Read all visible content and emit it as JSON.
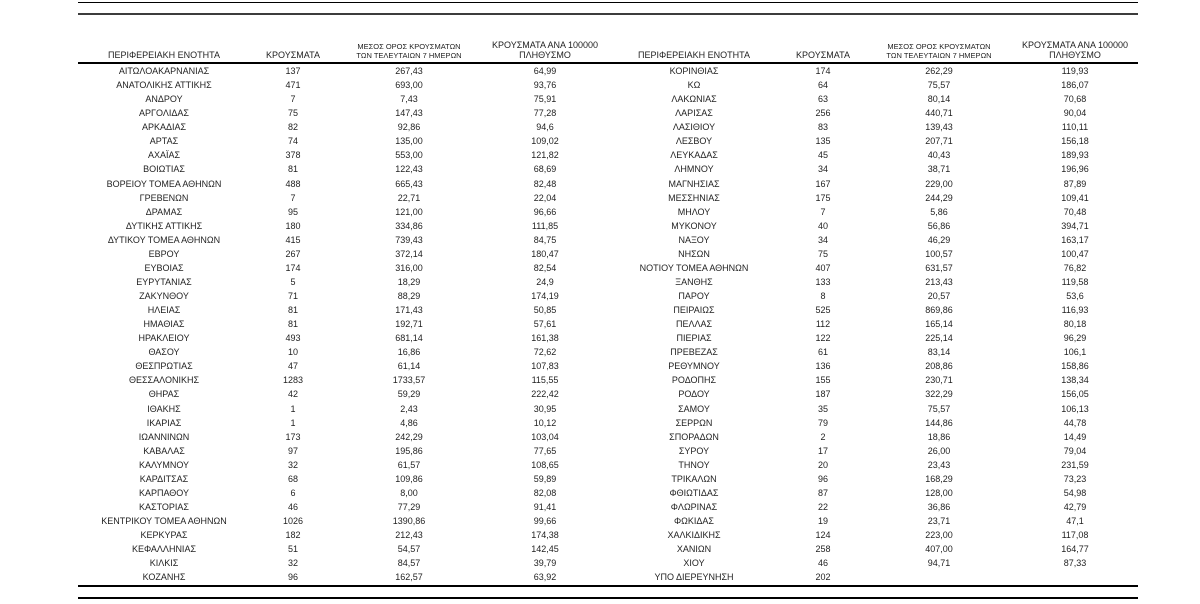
{
  "document": {
    "type": "regional-covid-case-statistics-table",
    "colors": {
      "text": "#1f1f1f",
      "rule": "#000000"
    }
  },
  "table": {
    "headers": {
      "region": "ΠΕΡΙΦΕΡΕΙΑΚΗ ΕΝΟΤΗΤΑ",
      "cases": "ΚΡΟΥΣΜΑΤΑ",
      "avg7_line1": "ΜΕΣΟΣ ΟΡΟΣ ΚΡΟΥΣΜΑΤΩΝ",
      "avg7_line2": "ΤΩΝ ΤΕΛΕΥΤΑΙΩΝ 7 ΗΜΕΡΩΝ",
      "per100k_line1": "ΚΡΟΥΣΜΑΤΑ ΑΝΑ 100000",
      "per100k_line2": "ΠΛΗΘΥΣΜΟ"
    },
    "left_rows": [
      [
        "ΑΙΤΩΛΟΑΚΑΡΝΑΝΙΑΣ",
        "137",
        "267,43",
        "64,99"
      ],
      [
        "ΑΝΑΤΟΛΙΚΗΣ ΑΤΤΙΚΗΣ",
        "471",
        "693,00",
        "93,76"
      ],
      [
        "ΑΝΔΡΟΥ",
        "7",
        "7,43",
        "75,91"
      ],
      [
        "ΑΡΓΟΛΙΔΑΣ",
        "75",
        "147,43",
        "77,28"
      ],
      [
        "ΑΡΚΑΔΙΑΣ",
        "82",
        "92,86",
        "94,6"
      ],
      [
        "ΑΡΤΑΣ",
        "74",
        "135,00",
        "109,02"
      ],
      [
        "ΑΧΑΪΑΣ",
        "378",
        "553,00",
        "121,82"
      ],
      [
        "ΒΟΙΩΤΙΑΣ",
        "81",
        "122,43",
        "68,69"
      ],
      [
        "ΒΟΡΕΙΟΥ ΤΟΜΕΑ ΑΘΗΝΩΝ",
        "488",
        "665,43",
        "82,48"
      ],
      [
        "ΓΡΕΒΕΝΩΝ",
        "7",
        "22,71",
        "22,04"
      ],
      [
        "ΔΡΑΜΑΣ",
        "95",
        "121,00",
        "96,66"
      ],
      [
        "ΔΥΤΙΚΗΣ ΑΤΤΙΚΗΣ",
        "180",
        "334,86",
        "111,85"
      ],
      [
        "ΔΥΤΙΚΟΥ ΤΟΜΕΑ ΑΘΗΝΩΝ",
        "415",
        "739,43",
        "84,75"
      ],
      [
        "ΕΒΡΟΥ",
        "267",
        "372,14",
        "180,47"
      ],
      [
        "ΕΥΒΟΙΑΣ",
        "174",
        "316,00",
        "82,54"
      ],
      [
        "ΕΥΡΥΤΑΝΙΑΣ",
        "5",
        "18,29",
        "24,9"
      ],
      [
        "ΖΑΚΥΝΘΟΥ",
        "71",
        "88,29",
        "174,19"
      ],
      [
        "ΗΛΕΙΑΣ",
        "81",
        "171,43",
        "50,85"
      ],
      [
        "ΗΜΑΘΙΑΣ",
        "81",
        "192,71",
        "57,61"
      ],
      [
        "ΗΡΑΚΛΕΙΟΥ",
        "493",
        "681,14",
        "161,38"
      ],
      [
        "ΘΑΣΟΥ",
        "10",
        "16,86",
        "72,62"
      ],
      [
        "ΘΕΣΠΡΩΤΙΑΣ",
        "47",
        "61,14",
        "107,83"
      ],
      [
        "ΘΕΣΣΑΛΟΝΙΚΗΣ",
        "1283",
        "1733,57",
        "115,55"
      ],
      [
        "ΘΗΡΑΣ",
        "42",
        "59,29",
        "222,42"
      ],
      [
        "ΙΘΑΚΗΣ",
        "1",
        "2,43",
        "30,95"
      ],
      [
        "ΙΚΑΡΙΑΣ",
        "1",
        "4,86",
        "10,12"
      ],
      [
        "ΙΩΑΝΝΙΝΩΝ",
        "173",
        "242,29",
        "103,04"
      ],
      [
        "ΚΑΒΑΛΑΣ",
        "97",
        "195,86",
        "77,65"
      ],
      [
        "ΚΑΛΥΜΝΟΥ",
        "32",
        "61,57",
        "108,65"
      ],
      [
        "ΚΑΡΔΙΤΣΑΣ",
        "68",
        "109,86",
        "59,89"
      ],
      [
        "ΚΑΡΠΑΘΟΥ",
        "6",
        "8,00",
        "82,08"
      ],
      [
        "ΚΑΣΤΟΡΙΑΣ",
        "46",
        "77,29",
        "91,41"
      ],
      [
        "ΚΕΝΤΡΙΚΟΥ ΤΟΜΕΑ ΑΘΗΝΩΝ",
        "1026",
        "1390,86",
        "99,66"
      ],
      [
        "ΚΕΡΚΥΡΑΣ",
        "182",
        "212,43",
        "174,38"
      ],
      [
        "ΚΕΦΑΛΛΗΝΙΑΣ",
        "51",
        "54,57",
        "142,45"
      ],
      [
        "ΚΙΛΚΙΣ",
        "32",
        "84,57",
        "39,79"
      ],
      [
        "ΚΟΖΑΝΗΣ",
        "96",
        "162,57",
        "63,92"
      ]
    ],
    "right_rows": [
      [
        "ΚΟΡΙΝΘΙΑΣ",
        "174",
        "262,29",
        "119,93"
      ],
      [
        "ΚΩ",
        "64",
        "75,57",
        "186,07"
      ],
      [
        "ΛΑΚΩΝΙΑΣ",
        "63",
        "80,14",
        "70,68"
      ],
      [
        "ΛΑΡΙΣΑΣ",
        "256",
        "440,71",
        "90,04"
      ],
      [
        "ΛΑΣΙΘΙΟΥ",
        "83",
        "139,43",
        "110,11"
      ],
      [
        "ΛΕΣΒΟΥ",
        "135",
        "207,71",
        "156,18"
      ],
      [
        "ΛΕΥΚΑΔΑΣ",
        "45",
        "40,43",
        "189,93"
      ],
      [
        "ΛΗΜΝΟΥ",
        "34",
        "38,71",
        "196,96"
      ],
      [
        "ΜΑΓΝΗΣΙΑΣ",
        "167",
        "229,00",
        "87,89"
      ],
      [
        "ΜΕΣΣΗΝΙΑΣ",
        "175",
        "244,29",
        "109,41"
      ],
      [
        "ΜΗΛΟΥ",
        "7",
        "5,86",
        "70,48"
      ],
      [
        "ΜΥΚΟΝΟΥ",
        "40",
        "56,86",
        "394,71"
      ],
      [
        "ΝΑΞΟΥ",
        "34",
        "46,29",
        "163,17"
      ],
      [
        "ΝΗΣΩΝ",
        "75",
        "100,57",
        "100,47"
      ],
      [
        "ΝΟΤΙΟΥ ΤΟΜΕΑ ΑΘΗΝΩΝ",
        "407",
        "631,57",
        "76,82"
      ],
      [
        "ΞΑΝΘΗΣ",
        "133",
        "213,43",
        "119,58"
      ],
      [
        "ΠΑΡΟΥ",
        "8",
        "20,57",
        "53,6"
      ],
      [
        "ΠΕΙΡΑΙΩΣ",
        "525",
        "869,86",
        "116,93"
      ],
      [
        "ΠΕΛΛΑΣ",
        "112",
        "165,14",
        "80,18"
      ],
      [
        "ΠΙΕΡΙΑΣ",
        "122",
        "225,14",
        "96,29"
      ],
      [
        "ΠΡΕΒΕΖΑΣ",
        "61",
        "83,14",
        "106,1"
      ],
      [
        "ΡΕΘΥΜΝΟΥ",
        "136",
        "208,86",
        "158,86"
      ],
      [
        "ΡΟΔΟΠΗΣ",
        "155",
        "230,71",
        "138,34"
      ],
      [
        "ΡΟΔΟΥ",
        "187",
        "322,29",
        "156,05"
      ],
      [
        "ΣΑΜΟΥ",
        "35",
        "75,57",
        "106,13"
      ],
      [
        "ΣΕΡΡΩΝ",
        "79",
        "144,86",
        "44,78"
      ],
      [
        "ΣΠΟΡΑΔΩΝ",
        "2",
        "18,86",
        "14,49"
      ],
      [
        "ΣΥΡΟΥ",
        "17",
        "26,00",
        "79,04"
      ],
      [
        "ΤΗΝΟΥ",
        "20",
        "23,43",
        "231,59"
      ],
      [
        "ΤΡΙΚΑΛΩΝ",
        "96",
        "168,29",
        "73,23"
      ],
      [
        "ΦΘΙΩΤΙΔΑΣ",
        "87",
        "128,00",
        "54,98"
      ],
      [
        "ΦΛΩΡΙΝΑΣ",
        "22",
        "36,86",
        "42,79"
      ],
      [
        "ΦΩΚΙΔΑΣ",
        "19",
        "23,71",
        "47,1"
      ],
      [
        "ΧΑΛΚΙΔΙΚΗΣ",
        "124",
        "223,00",
        "117,08"
      ],
      [
        "ΧΑΝΙΩΝ",
        "258",
        "407,00",
        "164,77"
      ],
      [
        "ΧΙΟΥ",
        "46",
        "94,71",
        "87,33"
      ],
      [
        "ΥΠΟ ΔΙΕΡΕΥΝΗΣΗ",
        "202",
        "",
        ""
      ]
    ]
  }
}
